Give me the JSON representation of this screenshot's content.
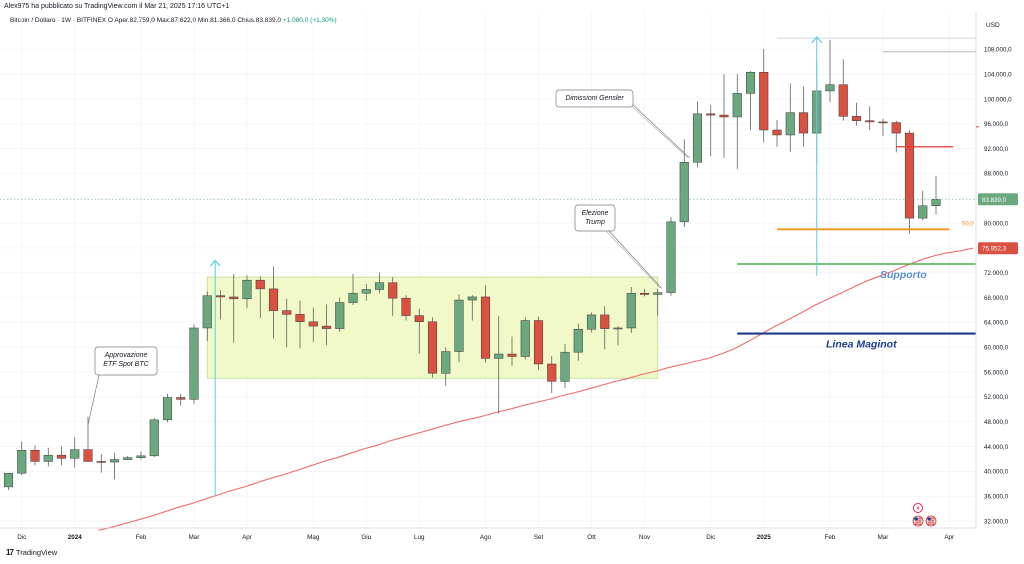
{
  "header": {
    "text": "Alex975 ha pubblicato su TradingView.com il Mar 21, 2025 17:16 UTC+1"
  },
  "symbol_line": {
    "name": "Bitcoin / Dollaro · 1W · BITFINEX",
    "o_label": "O",
    "open": "Aper.82.759,0",
    "high": "Max.87.622,0",
    "low": "Min.81.366,0",
    "close": "Chius.83.839,0",
    "change": "+1.080,0 (+1,30%)"
  },
  "currency": "USD",
  "footer": {
    "brand": "TradingView",
    "mark": "17"
  },
  "colors": {
    "up": "#6ba77f",
    "down": "#d95140",
    "ma": "#f06a6a",
    "range_fill": "#f1f9c8",
    "range_stroke": "#b9e08c",
    "support": "#4caf50",
    "maginot": "#1e3a8a",
    "fib": "#f7931a",
    "resistance": "#e53935",
    "arrow": "#5ccce0"
  },
  "chart_data": {
    "type": "candlestick",
    "y_axis": {
      "min": 30000,
      "max": 112000,
      "ticks": [
        "108.000,0",
        "104.000,0",
        "100.000,0",
        "96.000,0",
        "92.000,0",
        "88.000,0",
        "84.000,0",
        "80.000,0",
        "76.000,0",
        "72.000,0",
        "68.000,0",
        "64.000,0",
        "60.000,0",
        "56.000,0",
        "52.000,0",
        "48.000,0",
        "44.000,0",
        "40.000,0",
        "36.000,0",
        "32.000,0"
      ],
      "tick_values": [
        108000,
        104000,
        100000,
        96000,
        92000,
        88000,
        84000,
        80000,
        76000,
        72000,
        68000,
        64000,
        60000,
        56000,
        52000,
        48000,
        44000,
        40000,
        36000,
        32000
      ]
    },
    "x_axis": {
      "labels": [
        "Dic",
        "2024",
        "Feb",
        "Mar",
        "Apr",
        "Mag",
        "Giu",
        "Lug",
        "Ago",
        "Set",
        "Ott",
        "Nov",
        "Dic",
        "2025",
        "Feb",
        "Mar",
        "Apr"
      ],
      "label_weeks": [
        1,
        5,
        10,
        14,
        18,
        23,
        27,
        31,
        36,
        40,
        44,
        48,
        53,
        57,
        62,
        66,
        71
      ],
      "bold": [
        "2024",
        "2025"
      ]
    },
    "candles": [
      {
        "o": 37500,
        "h": 39000,
        "l": 37000,
        "c": 39700
      },
      {
        "o": 39700,
        "h": 44800,
        "l": 39400,
        "c": 43400
      },
      {
        "o": 43400,
        "h": 44200,
        "l": 41000,
        "c": 41600
      },
      {
        "o": 41600,
        "h": 43800,
        "l": 40800,
        "c": 42600
      },
      {
        "o": 42600,
        "h": 44000,
        "l": 41000,
        "c": 42100
      },
      {
        "o": 42100,
        "h": 45500,
        "l": 40600,
        "c": 43500
      },
      {
        "o": 43500,
        "h": 48800,
        "l": 41500,
        "c": 41600
      },
      {
        "o": 41600,
        "h": 42800,
        "l": 39800,
        "c": 41500
      },
      {
        "o": 41500,
        "h": 43000,
        "l": 38700,
        "c": 41900
      },
      {
        "o": 41900,
        "h": 42500,
        "l": 41800,
        "c": 42200
      },
      {
        "o": 42200,
        "h": 43200,
        "l": 41900,
        "c": 42500
      },
      {
        "o": 42500,
        "h": 48600,
        "l": 42300,
        "c": 48300
      },
      {
        "o": 48300,
        "h": 52500,
        "l": 47900,
        "c": 51900
      },
      {
        "o": 51900,
        "h": 52500,
        "l": 50600,
        "c": 51600
      },
      {
        "o": 51600,
        "h": 63700,
        "l": 50900,
        "c": 63100
      },
      {
        "o": 63100,
        "h": 69000,
        "l": 61000,
        "c": 68300
      },
      {
        "o": 68300,
        "h": 69200,
        "l": 64500,
        "c": 68100
      },
      {
        "o": 68100,
        "h": 71800,
        "l": 60700,
        "c": 67800
      },
      {
        "o": 67800,
        "h": 71600,
        "l": 66300,
        "c": 70800
      },
      {
        "o": 70800,
        "h": 71400,
        "l": 64700,
        "c": 69400
      },
      {
        "o": 69400,
        "h": 73000,
        "l": 61400,
        "c": 65900
      },
      {
        "o": 65900,
        "h": 67800,
        "l": 60000,
        "c": 65300
      },
      {
        "o": 65300,
        "h": 67500,
        "l": 59800,
        "c": 64100
      },
      {
        "o": 64100,
        "h": 66400,
        "l": 60800,
        "c": 63400
      },
      {
        "o": 63400,
        "h": 66900,
        "l": 60300,
        "c": 63000
      },
      {
        "o": 63000,
        "h": 68000,
        "l": 62500,
        "c": 67200
      },
      {
        "o": 67200,
        "h": 71800,
        "l": 66800,
        "c": 68700
      },
      {
        "o": 68700,
        "h": 70200,
        "l": 67500,
        "c": 69300
      },
      {
        "o": 69300,
        "h": 72000,
        "l": 68700,
        "c": 70400
      },
      {
        "o": 70400,
        "h": 71300,
        "l": 65000,
        "c": 67900
      },
      {
        "o": 67900,
        "h": 68400,
        "l": 64300,
        "c": 65100
      },
      {
        "o": 65100,
        "h": 66200,
        "l": 59000,
        "c": 64100
      },
      {
        "o": 64100,
        "h": 64800,
        "l": 55100,
        "c": 55800
      },
      {
        "o": 55800,
        "h": 60000,
        "l": 53800,
        "c": 59300
      },
      {
        "o": 59300,
        "h": 68500,
        "l": 57600,
        "c": 67600
      },
      {
        "o": 67600,
        "h": 68400,
        "l": 64300,
        "c": 68100
      },
      {
        "o": 68100,
        "h": 70000,
        "l": 57500,
        "c": 58200
      },
      {
        "o": 58200,
        "h": 65000,
        "l": 49300,
        "c": 58900
      },
      {
        "o": 58900,
        "h": 61700,
        "l": 57000,
        "c": 58500
      },
      {
        "o": 58500,
        "h": 64800,
        "l": 58000,
        "c": 64300
      },
      {
        "o": 64300,
        "h": 64900,
        "l": 56400,
        "c": 57300
      },
      {
        "o": 57300,
        "h": 58600,
        "l": 52600,
        "c": 54500
      },
      {
        "o": 54500,
        "h": 60500,
        "l": 53400,
        "c": 59200
      },
      {
        "o": 59200,
        "h": 63800,
        "l": 57800,
        "c": 62900
      },
      {
        "o": 62900,
        "h": 65600,
        "l": 62400,
        "c": 65200
      },
      {
        "o": 65200,
        "h": 66600,
        "l": 59700,
        "c": 63000
      },
      {
        "o": 63000,
        "h": 63400,
        "l": 60300,
        "c": 63100
      },
      {
        "o": 63100,
        "h": 69700,
        "l": 62300,
        "c": 68700
      },
      {
        "o": 68700,
        "h": 69400,
        "l": 68200,
        "c": 68500
      },
      {
        "o": 68500,
        "h": 69400,
        "l": 65000,
        "c": 68800
      },
      {
        "o": 68800,
        "h": 81000,
        "l": 68300,
        "c": 80200
      },
      {
        "o": 80200,
        "h": 93500,
        "l": 79400,
        "c": 89800
      },
      {
        "o": 89800,
        "h": 99600,
        "l": 89000,
        "c": 97600
      },
      {
        "o": 97600,
        "h": 99000,
        "l": 90800,
        "c": 97400
      },
      {
        "o": 97400,
        "h": 104000,
        "l": 90500,
        "c": 97100
      },
      {
        "o": 97100,
        "h": 104000,
        "l": 88700,
        "c": 100900
      },
      {
        "o": 100900,
        "h": 104500,
        "l": 95000,
        "c": 104300
      },
      {
        "o": 104300,
        "h": 108000,
        "l": 93000,
        "c": 95000
      },
      {
        "o": 95000,
        "h": 96600,
        "l": 92300,
        "c": 94200
      },
      {
        "o": 94200,
        "h": 102500,
        "l": 91500,
        "c": 97800
      },
      {
        "o": 97800,
        "h": 102000,
        "l": 92300,
        "c": 94500
      },
      {
        "o": 94500,
        "h": 106000,
        "l": 89500,
        "c": 101300
      },
      {
        "o": 101300,
        "h": 109500,
        "l": 99500,
        "c": 102300
      },
      {
        "o": 102300,
        "h": 106400,
        "l": 96500,
        "c": 97200
      },
      {
        "o": 97200,
        "h": 99400,
        "l": 95700,
        "c": 96500
      },
      {
        "o": 96500,
        "h": 98800,
        "l": 95000,
        "c": 96300
      },
      {
        "o": 96300,
        "h": 96800,
        "l": 94000,
        "c": 96200
      },
      {
        "o": 96200,
        "h": 96500,
        "l": 91400,
        "c": 94500
      },
      {
        "o": 94500,
        "h": 95000,
        "l": 78300,
        "c": 80800
      },
      {
        "o": 80800,
        "h": 85200,
        "l": 80500,
        "c": 82800
      },
      {
        "o": 82800,
        "h": 87622,
        "l": 81366,
        "c": 83839
      }
    ],
    "moving_average": {
      "start_week": 13,
      "values": [
        30500,
        31000,
        31600,
        32200,
        32800,
        33500,
        34200,
        34800,
        35500,
        36200,
        36900,
        37500,
        38200,
        38900,
        39500,
        40200,
        40900,
        41600,
        42200,
        42900,
        43600,
        44200,
        44900,
        45500,
        46100,
        46700,
        47300,
        47900,
        48400,
        48900,
        49500,
        50000,
        50600,
        51100,
        51600,
        52200,
        52700,
        53300,
        53900,
        54500,
        55000,
        55600,
        56100,
        56700,
        57200,
        57700,
        58200,
        58900,
        59800,
        60900,
        62100,
        63300,
        64400,
        65500,
        66700,
        67700,
        68700,
        69700,
        70700,
        71500,
        72300,
        73200,
        74000,
        74700,
        75200,
        75500,
        75950
      ]
    },
    "range_box": {
      "w_start": 15,
      "w_end": 49,
      "top": 71300,
      "bottom": 55000
    },
    "levels": [
      {
        "name": "resistance",
        "value": 92300,
        "w_start": 67,
        "w_end": 71.3
      },
      {
        "name": "fib",
        "value": 79000,
        "w_start": 58,
        "w_end": 71,
        "label": "50,0"
      },
      {
        "name": "support",
        "value": 73400,
        "w_start": 55,
        "w_end": 75,
        "label": "Supporto"
      },
      {
        "name": "maginot",
        "value": 62200,
        "w_start": 55,
        "w_end": 75,
        "label": "Linea Maginot"
      },
      {
        "name": "grey-1",
        "value": 109800,
        "w_start": 58,
        "w_end": 73
      },
      {
        "name": "grey-2",
        "value": 107600,
        "w_start": 66,
        "w_end": 73
      }
    ],
    "arrows": [
      {
        "w": 15.6,
        "from": 36000,
        "to": 74000
      },
      {
        "w": 61,
        "from": 71500,
        "to": 110000
      }
    ],
    "annotations": [
      {
        "name": "approvazione",
        "lines": [
          "Approvazione",
          "ETF Spot BTC"
        ],
        "anchor_w": 6,
        "anchor_v": 47500
      },
      {
        "name": "elezione",
        "lines": [
          "Elezione",
          "Trump"
        ],
        "anchor_w": 49.3,
        "anchor_v": 69500
      },
      {
        "name": "dimissioni",
        "lines": [
          "Dimissioni Gensler"
        ],
        "anchor_w": 51.4,
        "anchor_v": 90500
      }
    ],
    "price_labels": [
      {
        "value": 83839,
        "text": "83.839,0",
        "kind": "last"
      },
      {
        "value": 75952,
        "text": "75.952,3",
        "kind": "ma"
      }
    ]
  }
}
